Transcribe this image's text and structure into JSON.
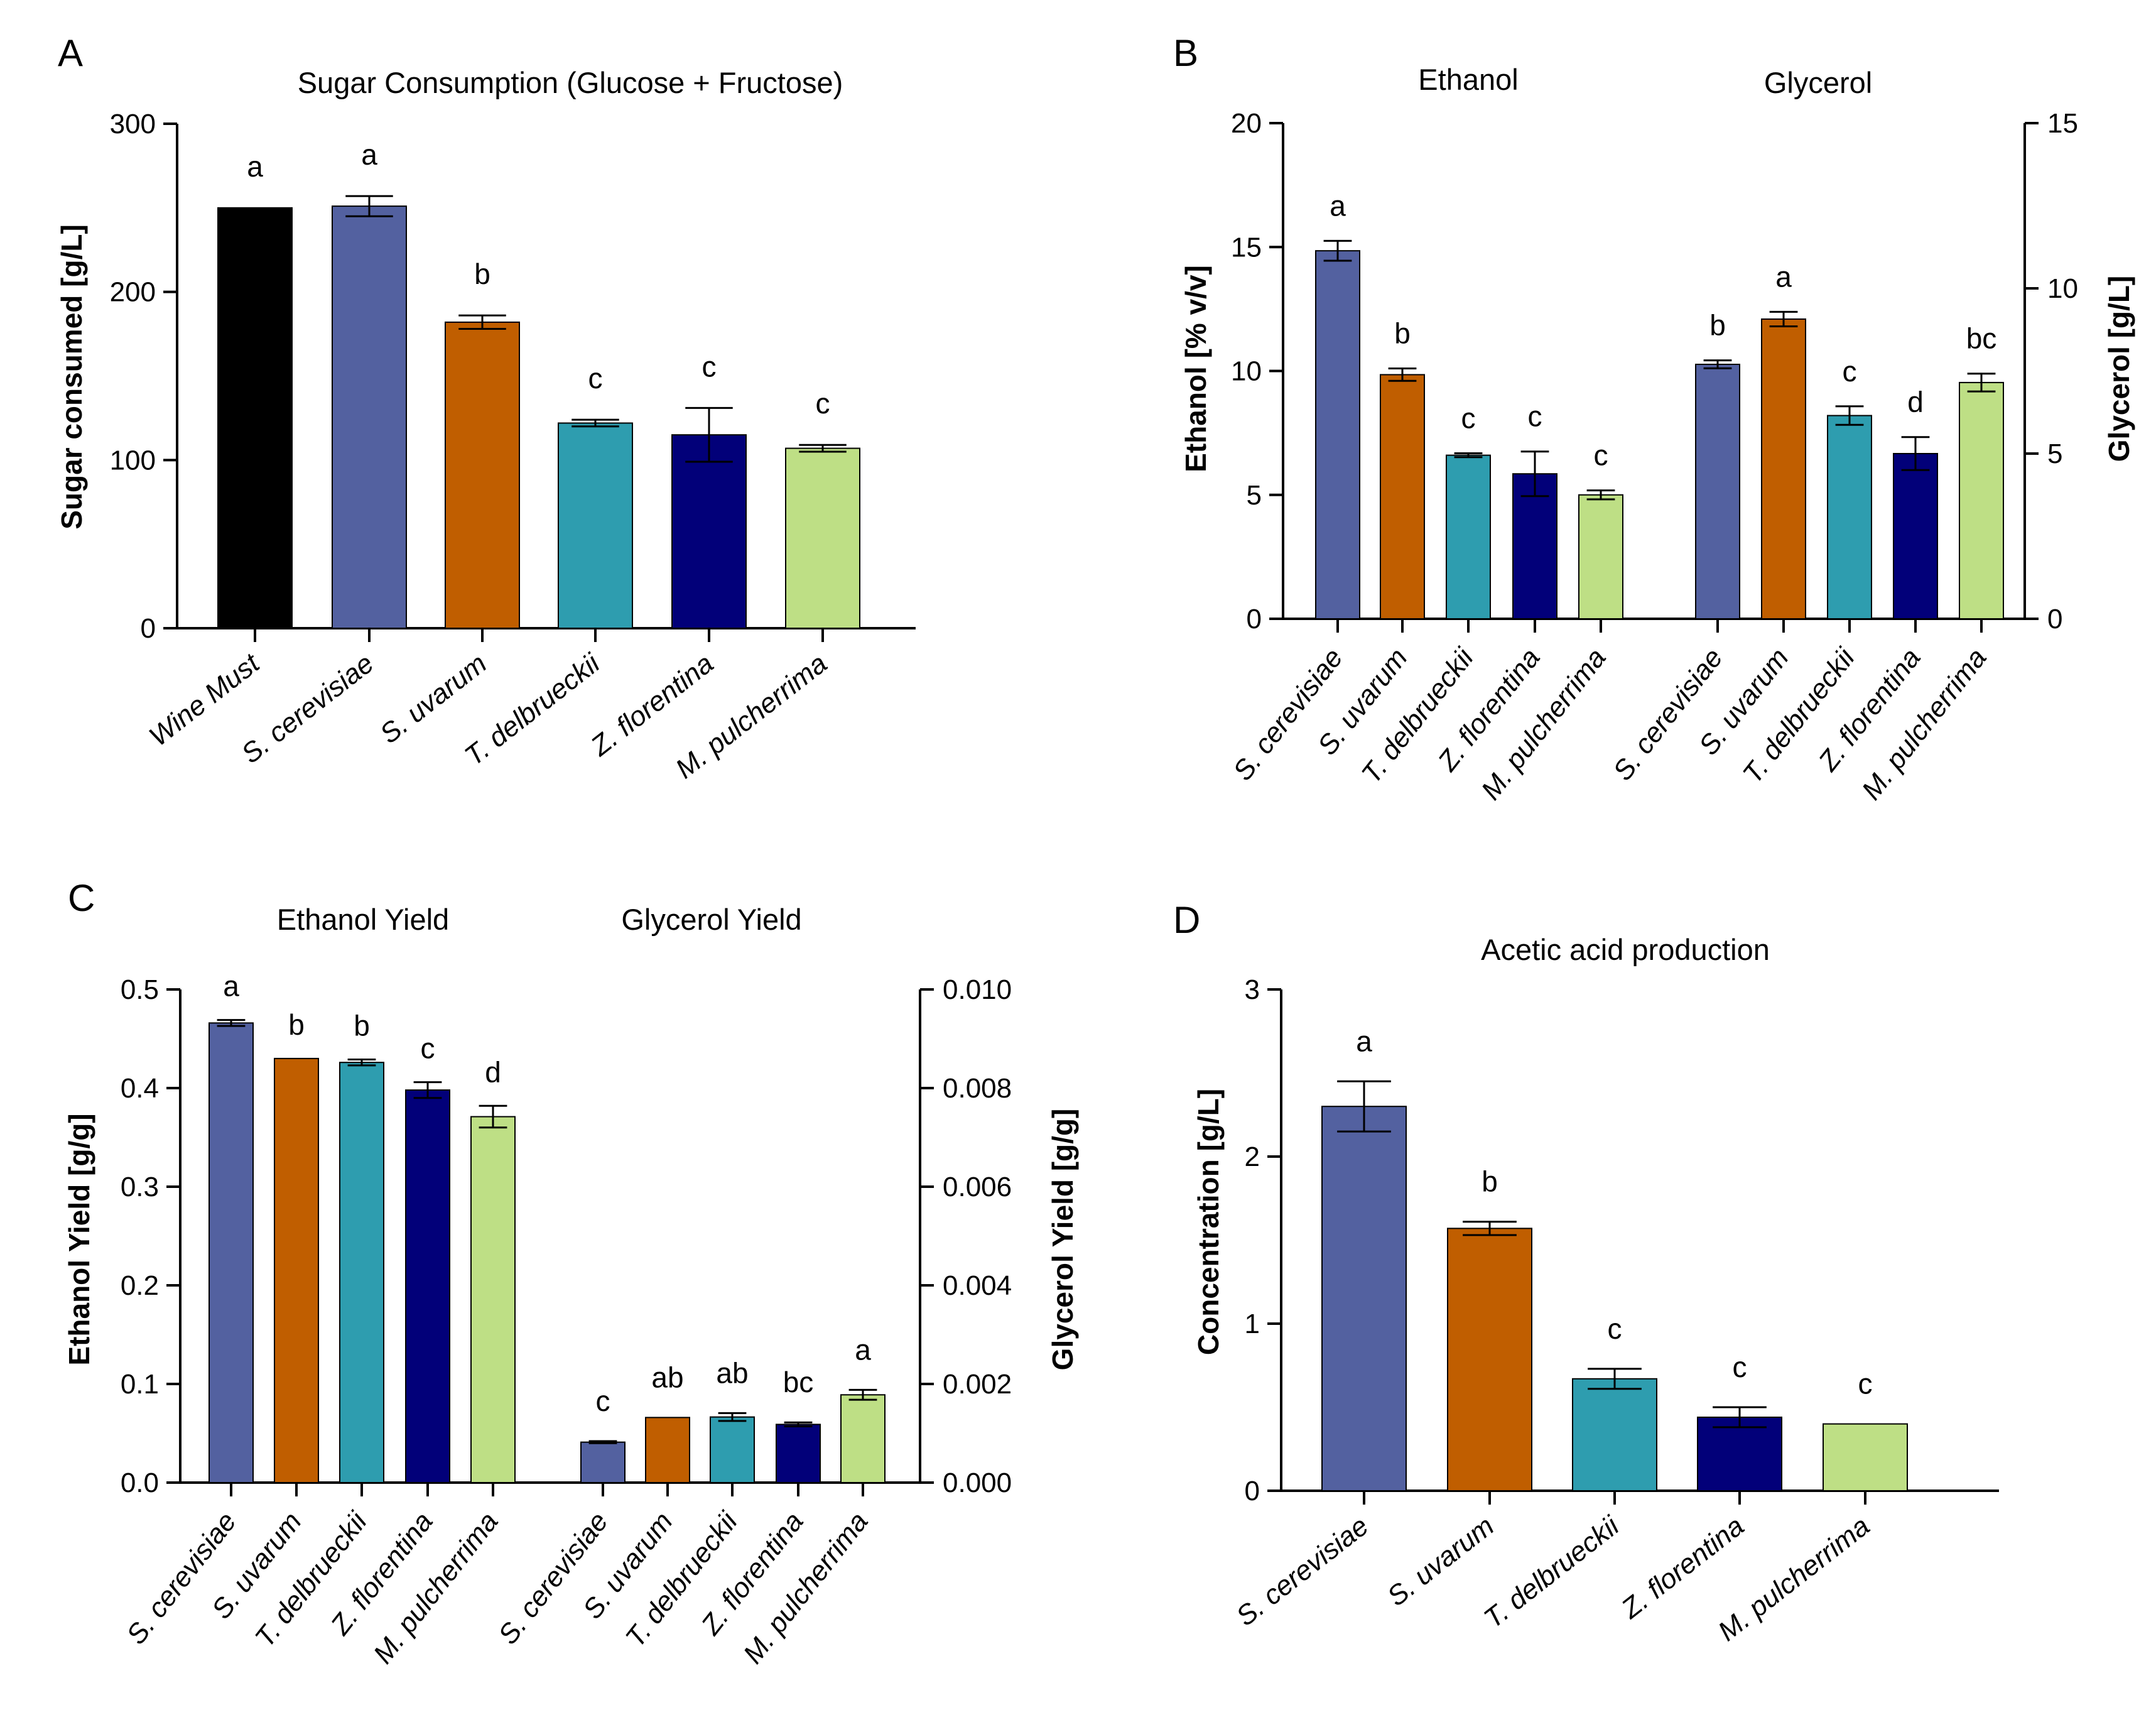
{
  "colors": {
    "Wine Must": "#000000",
    "S. cerevisiae": "#5361A0",
    "S. uvarum": "#C05E00",
    "T. delbrueckii": "#2E9DAF",
    "Z. florentina": "#020079",
    "M. pulcherrima": "#BEDF85"
  },
  "chart_data": [
    {
      "panel": "A",
      "type": "bar",
      "title": "Sugar Consumption (Glucose + Fructose)",
      "ylabel": "Sugar consumed [g/L]",
      "xlabel": "",
      "ylim": [
        0,
        300
      ],
      "yticks": [
        0,
        100,
        200,
        300
      ],
      "ytick_labels": [
        "0",
        "100",
        "200",
        "300"
      ],
      "categories": [
        "Wine Must",
        "S. cerevisiae",
        "S. uvarum",
        "T. delbrueckii",
        "Z. florentina",
        "M. pulcherrima"
      ],
      "values": [
        250,
        251,
        182,
        122,
        115,
        107
      ],
      "errors": [
        0,
        6,
        4,
        2,
        16,
        2
      ],
      "significance": [
        "a",
        "a",
        "b",
        "c",
        "c",
        "c"
      ]
    },
    {
      "panel": "B",
      "type": "bar",
      "groups": [
        {
          "title": "Ethanol",
          "axis": "left",
          "ylabel": "Ethanol [% v/v]",
          "ylim": [
            0,
            20
          ],
          "yticks": [
            0,
            5,
            10,
            15,
            20
          ],
          "ytick_labels": [
            "0",
            "5",
            "10",
            "15",
            "20"
          ],
          "categories": [
            "S. cerevisiae",
            "S. uvarum",
            "T. delbrueckii",
            "Z. florentina",
            "M. pulcherrima"
          ],
          "values": [
            14.85,
            9.85,
            6.6,
            5.85,
            5.0
          ],
          "errors": [
            0.4,
            0.25,
            0.08,
            0.9,
            0.18
          ],
          "significance": [
            "a",
            "b",
            "c",
            "c",
            "c"
          ]
        },
        {
          "title": "Glycerol",
          "axis": "right",
          "ylabel": "Glycerol [g/L]",
          "ylim": [
            0,
            15
          ],
          "yticks": [
            0,
            5,
            10,
            15
          ],
          "ytick_labels": [
            "0",
            "5",
            "10",
            "15"
          ],
          "categories": [
            "S. cerevisiae",
            "S. uvarum",
            "T. delbrueckii",
            "Z. florentina",
            "M. pulcherrima"
          ],
          "values": [
            7.7,
            9.07,
            6.15,
            5.0,
            7.15
          ],
          "errors": [
            0.12,
            0.22,
            0.28,
            0.5,
            0.27
          ],
          "significance": [
            "b",
            "a",
            "c",
            "d",
            "bc"
          ]
        }
      ]
    },
    {
      "panel": "C",
      "type": "bar",
      "groups": [
        {
          "title": "Ethanol Yield",
          "axis": "left",
          "ylabel": "Ethanol Yield [g/g]",
          "ylim": [
            0,
            0.5
          ],
          "yticks": [
            0,
            0.1,
            0.2,
            0.3,
            0.4,
            0.5
          ],
          "ytick_labels": [
            "0.0",
            "0.1",
            "0.2",
            "0.3",
            "0.4",
            "0.5"
          ],
          "categories": [
            "S. cerevisiae",
            "S. uvarum",
            "T. delbrueckii",
            "Z. florentina",
            "M. pulcherrima"
          ],
          "values": [
            0.466,
            0.43,
            0.426,
            0.398,
            0.371
          ],
          "errors": [
            0.003,
            0.0,
            0.003,
            0.008,
            0.011
          ],
          "significance": [
            "a",
            "b",
            "b",
            "c",
            "d"
          ]
        },
        {
          "title": "Glycerol Yield",
          "axis": "right",
          "ylabel": "Glycerol Yield [g/g]",
          "ylim": [
            0,
            0.01
          ],
          "yticks": [
            0,
            0.002,
            0.004,
            0.006,
            0.008,
            0.01
          ],
          "ytick_labels": [
            "0.000",
            "0.002",
            "0.004",
            "0.006",
            "0.008",
            "0.010"
          ],
          "categories": [
            "S. cerevisiae",
            "S. uvarum",
            "T. delbrueckii",
            "Z. florentina",
            "M. pulcherrima"
          ],
          "values": [
            0.00082,
            0.00132,
            0.00133,
            0.00118,
            0.00178
          ],
          "errors": [
            2e-05,
            0.0,
            8e-05,
            4e-05,
            0.0001
          ],
          "significance": [
            "c",
            "ab",
            "ab",
            "bc",
            "a"
          ]
        }
      ]
    },
    {
      "panel": "D",
      "type": "bar",
      "title": "Acetic acid production",
      "ylabel": "Concentration [g/L]",
      "xlabel": "",
      "ylim": [
        0,
        3
      ],
      "yticks": [
        0,
        1,
        2,
        3
      ],
      "ytick_labels": [
        "0",
        "1",
        "2",
        "3"
      ],
      "categories": [
        "S. cerevisiae",
        "S. uvarum",
        "T. delbrueckii",
        "Z. florentina",
        "M. pulcherrima"
      ],
      "values": [
        2.3,
        1.57,
        0.67,
        0.44,
        0.4
      ],
      "errors": [
        0.15,
        0.04,
        0.06,
        0.06,
        0.0
      ],
      "significance": [
        "a",
        "b",
        "c",
        "c",
        "c"
      ]
    }
  ]
}
